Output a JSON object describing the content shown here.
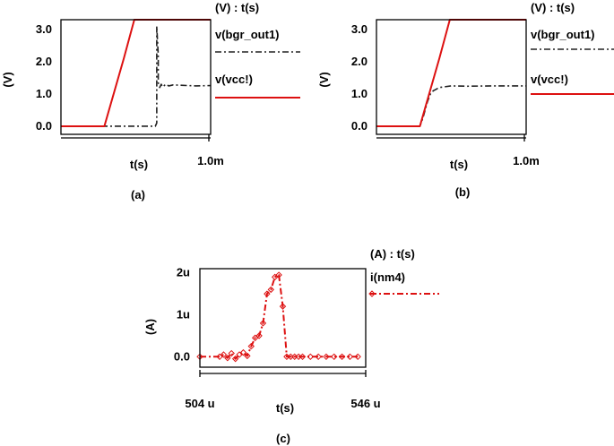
{
  "chart_data": [
    {
      "panel_label": "(a)",
      "type": "line",
      "legend_header": "(V) : t(s)",
      "ylabel": "(V)",
      "xlabel": "t(s)",
      "x_unit": "s",
      "xlim": [
        0,
        0.001
      ],
      "ylim": [
        -0.25,
        3.3
      ],
      "y_ticks": [
        0.0,
        1.0,
        2.0,
        3.0
      ],
      "y_tick_labels": [
        "0.0",
        "1.0",
        "2.0",
        "3.0"
      ],
      "x_tick_labels": [
        {
          "x": 0.001,
          "label": "1.0m"
        }
      ],
      "series": [
        {
          "name": "v(bgr_out1)",
          "color": "#222222",
          "style": "dash-dot",
          "x": [
            0.0,
            0.00029,
            0.00046,
            0.00063,
            0.00064,
            0.00064,
            0.00065,
            0.00065,
            0.00066,
            0.00067,
            0.00068,
            0.0007,
            0.00072,
            0.00075,
            0.0008,
            0.0009,
            0.001
          ],
          "y": [
            0.0,
            0.0,
            0.0,
            0.0,
            0.1,
            3.1,
            2.2,
            1.35,
            1.2,
            1.3,
            1.22,
            1.3,
            1.25,
            1.28,
            1.27,
            1.25,
            1.26
          ]
        },
        {
          "name": "v(vcc!)",
          "color": "#dd1111",
          "style": "solid",
          "x": [
            0.0,
            0.00029,
            0.00042,
            0.00049,
            0.001
          ],
          "y": [
            0.0,
            0.0,
            2.1,
            3.3,
            3.3
          ]
        }
      ]
    },
    {
      "panel_label": "(b)",
      "type": "line",
      "legend_header": "(V) : t(s)",
      "ylabel": "(V)",
      "xlabel": "t(s)",
      "x_unit": "s",
      "xlim": [
        0,
        0.001
      ],
      "ylim": [
        -0.25,
        3.3
      ],
      "y_ticks": [
        0.0,
        1.0,
        2.0,
        3.0
      ],
      "y_tick_labels": [
        "0.0",
        "1.0",
        "2.0",
        "3.0"
      ],
      "x_tick_labels": [
        {
          "x": 0.001,
          "label": "1.0m"
        }
      ],
      "series": [
        {
          "name": "v(bgr_out1)",
          "color": "#222222",
          "style": "dash-dot",
          "x": [
            0.0,
            0.00029,
            0.00031,
            0.00034,
            0.00036,
            0.00038,
            0.0004,
            0.00042,
            0.00045,
            0.0005,
            0.0006,
            0.0008,
            0.001
          ],
          "y": [
            0.0,
            0.0,
            0.25,
            0.75,
            1.0,
            1.1,
            1.15,
            1.2,
            1.22,
            1.25,
            1.24,
            1.25,
            1.25
          ]
        },
        {
          "name": "v(vcc!)",
          "color": "#dd1111",
          "style": "solid",
          "x": [
            0.0,
            0.00029,
            0.00042,
            0.00049,
            0.001
          ],
          "y": [
            0.0,
            0.0,
            2.1,
            3.3,
            3.3
          ]
        }
      ]
    },
    {
      "panel_label": "(c)",
      "type": "line",
      "legend_header": "(A) : t(s)",
      "ylabel": "(A)",
      "xlabel": "t(s)",
      "x_unit": "s",
      "xlim": [
        0.000504,
        0.000546
      ],
      "ylim": [
        -2.5e-07,
        2.1e-06
      ],
      "y_ticks": [
        0.0,
        1e-06,
        2e-06
      ],
      "y_tick_labels": [
        "0.0",
        "1u",
        "2u"
      ],
      "x_tick_labels": [
        {
          "x": 0.000504,
          "label": "504 u"
        },
        {
          "x": 0.000546,
          "label": "546 u"
        }
      ],
      "series": [
        {
          "name": "i(nm4)",
          "color": "#dd1111",
          "style": "dash-dot with diamond markers",
          "x": [
            0.000504,
            0.000509,
            0.00051,
            0.000511,
            0.000512,
            0.000513,
            0.000514,
            0.000515,
            0.000516,
            0.000517,
            0.000518,
            0.000519,
            0.00052,
            0.000521,
            0.000522,
            0.000523,
            0.000524,
            0.000525,
            0.000526,
            0.000527,
            0.000528,
            0.000529,
            0.00053,
            0.000532,
            0.000534,
            0.000536,
            0.000538,
            0.00054,
            0.000542,
            0.000544
          ],
          "y": [
            0.0,
            0.0,
            5e-08,
            -3e-08,
            8e-08,
            -5e-08,
            5e-08,
            1e-07,
            2e-08,
            2.5e-07,
            4.5e-07,
            5e-07,
            8e-07,
            1.5e-06,
            1.6e-06,
            1.9e-06,
            1.95e-06,
            1.2e-06,
            0.0,
            0.0,
            0.0,
            0.0,
            0.0,
            0.0,
            0.0,
            0.0,
            0.0,
            0.0,
            0.0,
            0.0
          ]
        }
      ]
    }
  ]
}
